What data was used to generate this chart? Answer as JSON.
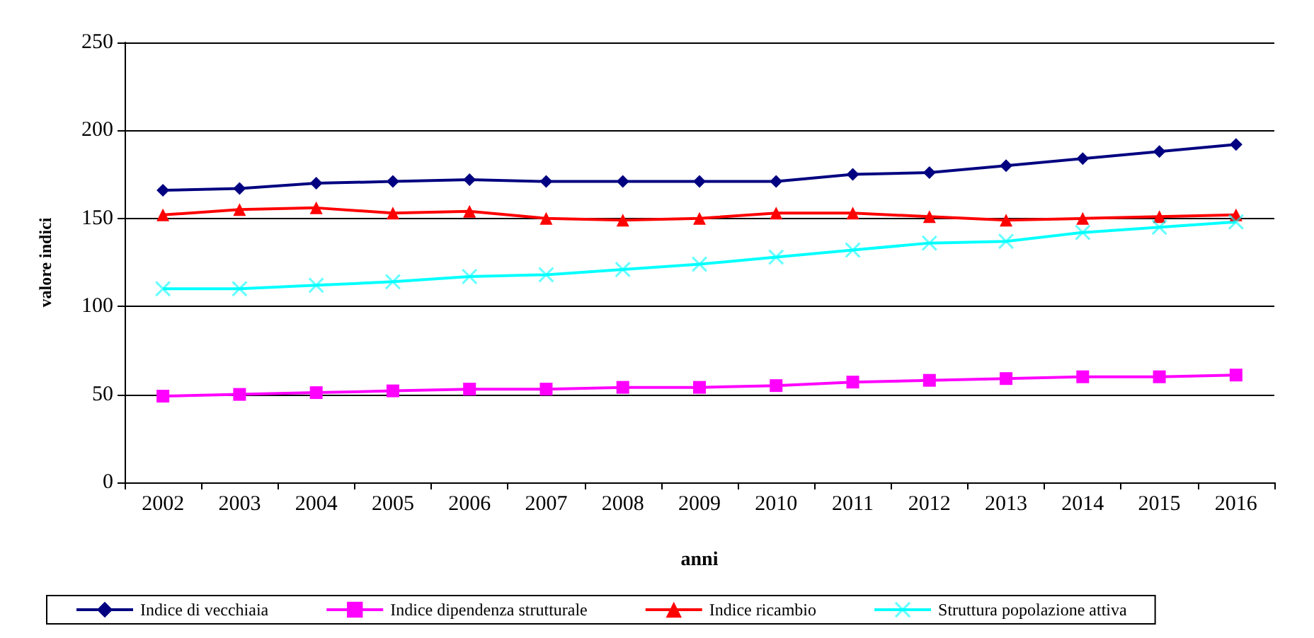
{
  "chart_data": {
    "type": "line",
    "xlabel": "anni",
    "ylabel": "valore indici",
    "categories": [
      "2002",
      "2003",
      "2004",
      "2005",
      "2006",
      "2007",
      "2008",
      "2009",
      "2010",
      "2011",
      "2012",
      "2013",
      "2014",
      "2015",
      "2016"
    ],
    "series": [
      {
        "name": "Indice di vecchiaia",
        "color": "#000080",
        "marker": "diamond",
        "values": [
          166,
          167,
          170,
          171,
          172,
          171,
          171,
          171,
          171,
          175,
          176,
          180,
          184,
          188,
          192
        ]
      },
      {
        "name": "Indice dipendenza strutturale",
        "color": "#ff00ff",
        "marker": "square",
        "values": [
          49,
          50,
          51,
          52,
          53,
          53,
          54,
          54,
          55,
          57,
          58,
          59,
          60,
          60,
          61
        ]
      },
      {
        "name": "Indice ricambio",
        "color": "#ff0000",
        "marker": "triangle",
        "values": [
          152,
          155,
          156,
          153,
          154,
          150,
          149,
          150,
          153,
          153,
          151,
          149,
          150,
          151,
          152
        ]
      },
      {
        "name": "Struttura popolazione attiva",
        "color": "#00ffff",
        "marker": "cross",
        "values": [
          110,
          110,
          112,
          114,
          117,
          118,
          121,
          124,
          128,
          132,
          136,
          137,
          142,
          145,
          148
        ]
      }
    ],
    "ylim": [
      0,
      250
    ],
    "yticks": [
      0,
      50,
      100,
      150,
      200,
      250
    ],
    "grid": "y",
    "legend": "bottom"
  }
}
